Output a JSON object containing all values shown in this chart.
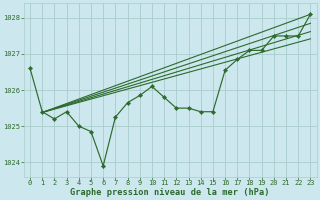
{
  "title": "Graphe pression niveau de la mer (hPa)",
  "background_color": "#cce8ee",
  "grid_color": "#aacccc",
  "line_color": "#2d6a2d",
  "xlim": [
    -0.5,
    23.5
  ],
  "ylim": [
    1023.6,
    1028.4
  ],
  "yticks": [
    1024,
    1025,
    1026,
    1027,
    1028
  ],
  "xticks": [
    0,
    1,
    2,
    3,
    4,
    5,
    6,
    7,
    8,
    9,
    10,
    11,
    12,
    13,
    14,
    15,
    16,
    17,
    18,
    19,
    20,
    21,
    22,
    23
  ],
  "main_line_x": [
    0,
    1,
    2,
    3,
    4,
    5,
    6,
    7,
    8,
    9,
    10,
    11,
    12,
    13,
    14,
    15,
    16,
    17,
    18,
    19,
    20,
    21,
    22,
    23
  ],
  "main_line_y": [
    1026.6,
    1025.4,
    1025.2,
    1025.4,
    1025.0,
    1024.85,
    1023.9,
    1025.25,
    1025.65,
    1025.85,
    1026.1,
    1025.8,
    1025.5,
    1025.5,
    1025.4,
    1025.4,
    1026.55,
    1026.85,
    1027.1,
    1027.1,
    1027.5,
    1027.5,
    1027.5,
    1028.1
  ],
  "straight_lines": [
    {
      "x0": 1,
      "y0": 1025.38,
      "x1": 23,
      "y1": 1028.1
    },
    {
      "x0": 1,
      "y0": 1025.38,
      "x1": 23,
      "y1": 1028.1
    },
    {
      "x0": 1,
      "y0": 1025.38,
      "x1": 22,
      "y1": 1027.75
    },
    {
      "x0": 1,
      "y0": 1025.38,
      "x1": 22,
      "y1": 1027.55
    },
    {
      "x0": 1,
      "y0": 1025.38,
      "x1": 21,
      "y1": 1027.35
    }
  ],
  "figsize": [
    3.2,
    2.0
  ],
  "dpi": 100
}
